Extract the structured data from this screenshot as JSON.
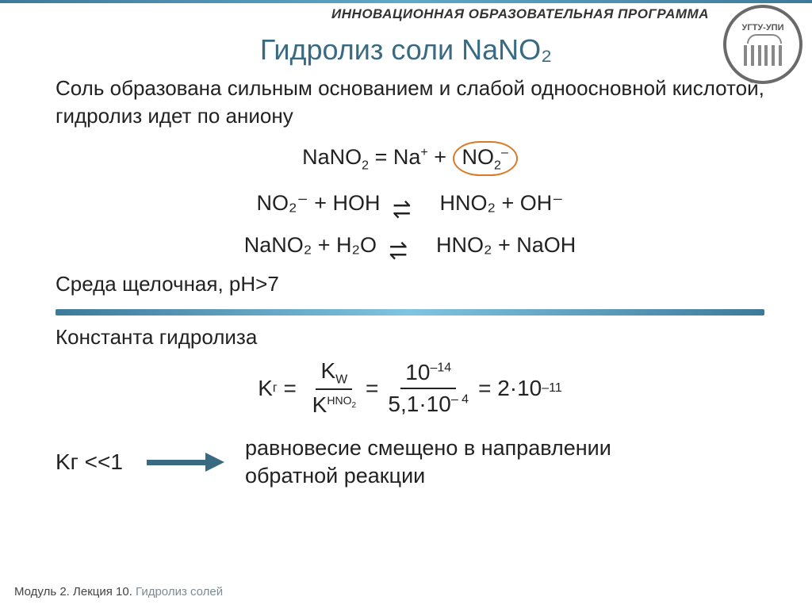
{
  "header": {
    "program_label": "ИННОВАЦИОННАЯ ОБРАЗОВАТЕЛЬНАЯ ПРОГРАММА",
    "logo_text": "УГТУ-УПИ"
  },
  "title": "Гидролиз соли NaNO₂",
  "intro": "Соль образована сильным основанием и слабой одноосновной кислотой, гидролиз идет по аниону",
  "equations": {
    "dissoc_left": "NaNO",
    "dissoc_sub": "2",
    "dissoc_mid": "  =  Na",
    "dissoc_plus": "+",
    "dissoc_plus2": "  +  ",
    "anion": "NO",
    "anion_sub": "2",
    "anion_sup": "–",
    "ionic": "NO₂⁻  +  HOH",
    "ionic_right": "HNO₂  +  OH⁻",
    "molecular_left": "NaNO₂   +  H₂O",
    "molecular_right": "HNO₂  +  NaOH"
  },
  "environment": "Среда щелочная, рН>7",
  "constant": {
    "label": "Константа гидролиза",
    "kg": "K",
    "kg_sub": "г",
    "eq": "=",
    "kw": "K",
    "kw_sub": "W",
    "khno2": "K",
    "khno2_sup": "HNO",
    "khno2_sup2": "2",
    "num2": "10",
    "num2_exp": "–14",
    "den2": "5,1·10",
    "den2_exp": "– 4",
    "result": "2·10",
    "result_exp": "–11"
  },
  "conclusion": {
    "kg_line": "Kг <<1",
    "text1": "равновесие смещено в направлении",
    "text2": "обратной реакции"
  },
  "footer": {
    "module": "Модуль 2. Лекция 10. ",
    "topic": "Гидролиз солей"
  },
  "colors": {
    "title_color": "#3a6a82",
    "circle_color": "#d97a2a",
    "bar_gradient_mid": "#7fc4e0",
    "arrow_color": "#3a6a82"
  }
}
